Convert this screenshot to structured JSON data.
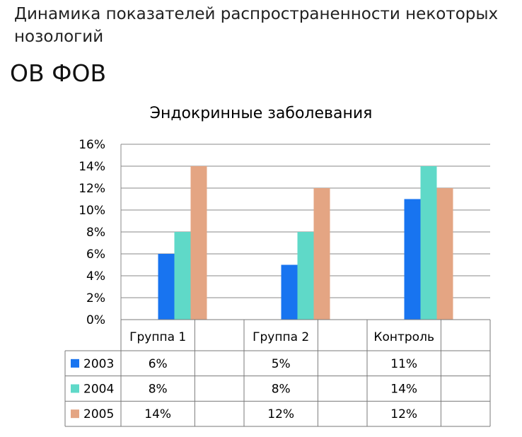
{
  "page": {
    "title": "Динамика показателей распространенности некоторых нозологий",
    "subtitle": "ОВ ФОВ"
  },
  "chart_data": {
    "type": "bar",
    "title": "Эндокринные заболевания",
    "categories": [
      "Группа 1",
      "Группа 2",
      "Контроль"
    ],
    "series": [
      {
        "name": "2003",
        "color": "#1874f0",
        "values": [
          6,
          5,
          11
        ],
        "labels": [
          "6%",
          "5%",
          "11%"
        ]
      },
      {
        "name": "2004",
        "color": "#5fd9c8",
        "values": [
          8,
          8,
          14
        ],
        "labels": [
          "8%",
          "8%",
          "14%"
        ]
      },
      {
        "name": "2005",
        "color": "#e4a583",
        "values": [
          14,
          12,
          12
        ],
        "labels": [
          "14%",
          "12%",
          "12%"
        ]
      }
    ],
    "ylim": [
      0,
      16
    ],
    "yticks": [
      "0%",
      "2%",
      "4%",
      "6%",
      "8%",
      "10%",
      "12%",
      "14%",
      "16%"
    ],
    "grid": true,
    "legend": "data-table"
  }
}
